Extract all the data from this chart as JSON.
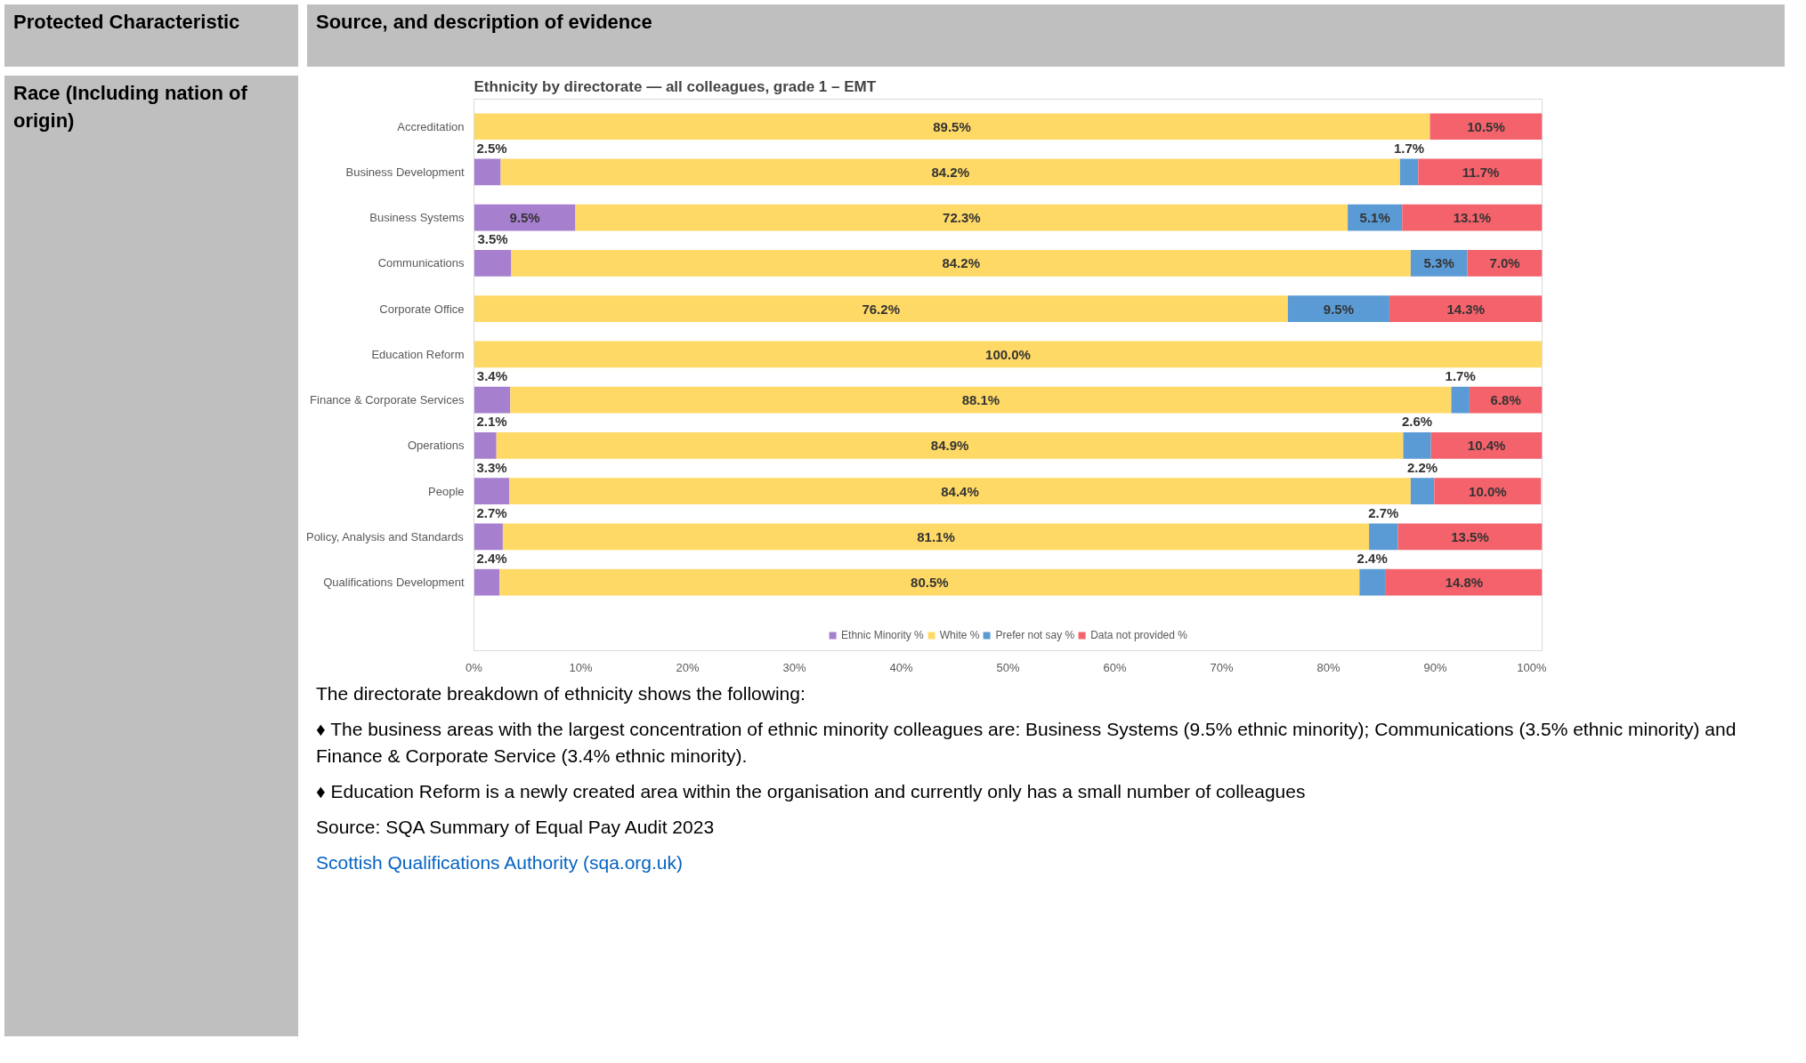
{
  "chart_data": {
    "type": "bar",
    "orientation": "horizontal",
    "stacked": true,
    "title": "Ethnicity by directorate — all colleagues, grade 1 – EMT",
    "categories": [
      "Accreditation",
      "Business Development",
      "Business Systems",
      "Communications",
      "Corporate Office",
      "Education Reform",
      "Finance & Corporate Services",
      "Operations",
      "People",
      "Policy, Analysis and Standards",
      "Qualifications Development"
    ],
    "series": [
      {
        "name": "Ethnic Minority %",
        "color": "#a67fcf",
        "values": [
          null,
          2.5,
          9.5,
          3.5,
          null,
          null,
          3.4,
          2.1,
          3.3,
          2.7,
          2.4
        ],
        "value_labels": [
          null,
          "2.5%",
          "9.5%",
          "3.5%",
          null,
          null,
          "3.4%",
          "2.1%",
          "3.3%",
          "2.7%",
          "2.4%"
        ]
      },
      {
        "name": "White %",
        "color": "#ffd966",
        "values": [
          89.5,
          84.2,
          72.3,
          84.2,
          76.2,
          100.0,
          88.1,
          84.9,
          84.4,
          81.1,
          80.5
        ],
        "value_labels": [
          "89.5%",
          "84.2%",
          "72.3%",
          "84.2%",
          "76.2%",
          "100.0%",
          "88.1%",
          "84.9%",
          "84.4%",
          "81.1%",
          "80.5%"
        ]
      },
      {
        "name": "Prefer not say %",
        "color": "#5b9bd5",
        "values": [
          null,
          1.7,
          5.1,
          5.3,
          9.5,
          null,
          1.7,
          2.6,
          2.2,
          2.7,
          2.4
        ],
        "value_labels": [
          null,
          "1.7%",
          "5.1%",
          "5.3%",
          "9.5%",
          null,
          "1.7%",
          "2.6%",
          "2.2%",
          "2.7%",
          "2.4%"
        ]
      },
      {
        "name": "Data not provided %",
        "color": "#f4626b",
        "values": [
          10.5,
          11.7,
          13.1,
          7.0,
          14.3,
          null,
          6.8,
          10.4,
          10.0,
          13.5,
          14.8
        ],
        "value_labels": [
          "10.5%",
          "11.7%",
          "13.1%",
          "7.0%",
          "14.3%",
          null,
          "6.8%",
          "10.4%",
          "10.0%",
          "13.5%",
          "14.8%"
        ]
      }
    ],
    "xlim": [
      0,
      100
    ],
    "xticks": [
      {
        "value": 0,
        "label": "0%"
      },
      {
        "value": 10,
        "label": "10%"
      },
      {
        "value": 20,
        "label": "20%"
      },
      {
        "value": 30,
        "label": "30%"
      },
      {
        "value": 40,
        "label": "40%"
      },
      {
        "value": 50,
        "label": "50%"
      },
      {
        "value": 60,
        "label": "60%"
      },
      {
        "value": 70,
        "label": "70%"
      },
      {
        "value": 80,
        "label": "80%"
      },
      {
        "value": 90,
        "label": "90%"
      },
      {
        "value": 100,
        "label": "100%"
      }
    ],
    "grid": false,
    "legend": "bottom",
    "annotations": [
      "Protected Characteristic",
      "Source, and description of evidence",
      "Race (Including nation of origin)",
      "The directorate breakdown of ethnicity shows the following:",
      "♦ The business areas with the largest concentration of ethnic minority colleagues are: Business Systems (9.5% ethnic minority); Communications (3.5% ethnic minority) and Finance & Corporate Service (3.4% ethnic minority).",
      "♦ Education Reform is a newly created area within the organisation and currently only has a small number of colleagues",
      "Source: SQA Summary of Equal Pay Audit 2023",
      "Scottish Qualifications Authority (sqa.org.uk)"
    ]
  }
}
